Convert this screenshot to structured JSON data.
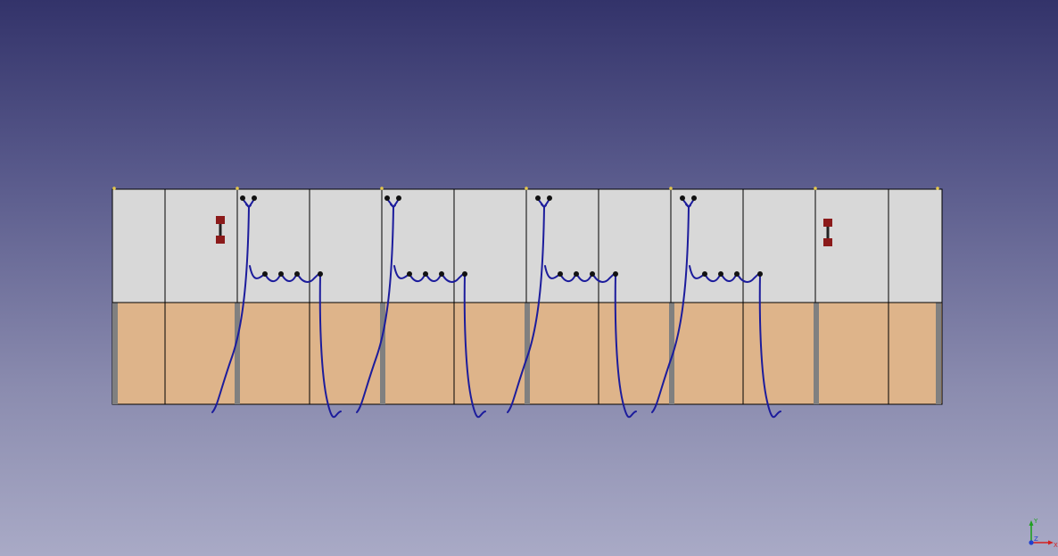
{
  "viewer": {
    "background_top": "#33336a",
    "background_bottom": "#a9aac6"
  },
  "model": {
    "panel_count": 11,
    "upper_fill": "#d8d8d8",
    "lower_fill": "#deb48a",
    "post_color": "#808080",
    "wire_color": "#1c1c9c",
    "terminal_color": "#111111",
    "fuse_color": "#8b1a1a",
    "marker_color": "#e6c84a",
    "wired_groups": 4,
    "fuse_symbols": 2
  },
  "axis": {
    "x_label": "X",
    "y_label": "Y",
    "z_label": "Z",
    "x_color": "#d42020",
    "y_color": "#20a020",
    "z_color": "#2040d0"
  }
}
